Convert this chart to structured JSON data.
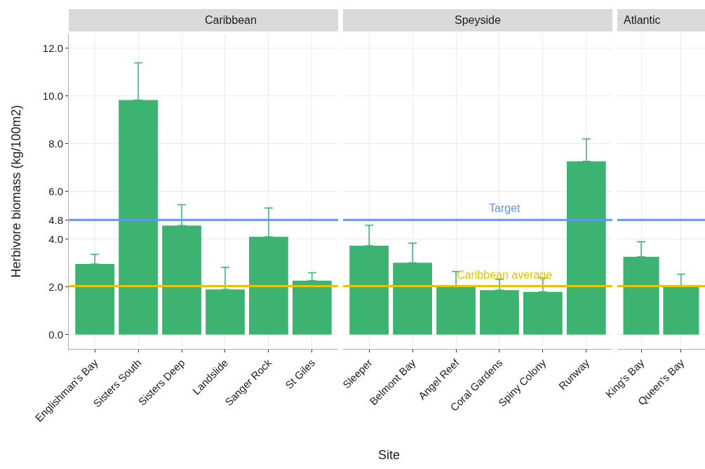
{
  "chart_data": [
    {
      "type": "bar",
      "title": "Caribbean",
      "ylabel": "Herbivore biomass (kg/100m2)",
      "categories": [
        "Englishman's Bay",
        "Sisters South",
        "Sisters Deep",
        "Landslide",
        "Sanger Rock",
        "St Giles"
      ],
      "color": "#3cb371",
      "values": [
        2.96,
        9.82,
        4.57,
        1.89,
        4.1,
        2.26
      ],
      "errors": [
        [
          2.96,
          3.36
        ],
        [
          9.82,
          11.38
        ],
        [
          4.57,
          5.44
        ],
        [
          1.89,
          2.82
        ],
        [
          4.1,
          5.3
        ],
        [
          2.26,
          2.59
        ]
      ],
      "ylim": [
        -0.6,
        12.6
      ],
      "yticks": [
        {
          "value": 0,
          "label": "0.0"
        },
        {
          "value": 2,
          "label": "2.0"
        },
        {
          "value": 4,
          "label": "4.0"
        },
        {
          "value": 4.8,
          "label": "4.8"
        },
        {
          "value": 6,
          "label": "6.0"
        },
        {
          "value": 8,
          "label": "8.0"
        },
        {
          "value": 10,
          "label": "10.0"
        },
        {
          "value": 12,
          "label": "12.0"
        }
      ],
      "grid": true,
      "ref_lines": [
        {
          "axis": "y",
          "value": 4.8,
          "color": "#6495ed"
        },
        {
          "axis": "y",
          "value": 2.03,
          "color": "#e6c300"
        }
      ]
    },
    {
      "type": "bar",
      "title": "Speyside",
      "xlabel": "Site",
      "categories": [
        "Sleeper",
        "Belmont Bay",
        "Angel Reef",
        "Coral Gardens",
        "Spiny Colony",
        "Runway"
      ],
      "color": "#3cb371",
      "values": [
        3.72,
        3.01,
        2.05,
        1.86,
        1.79,
        7.26
      ],
      "errors": [
        [
          3.72,
          4.58
        ],
        [
          3.01,
          3.83
        ],
        [
          2.05,
          2.64
        ],
        [
          1.86,
          2.32
        ],
        [
          1.79,
          2.38
        ],
        [
          7.26,
          8.2
        ]
      ],
      "ylim": [
        -0.6,
        12.6
      ],
      "yticks": [
        0,
        2,
        4,
        4.8,
        6,
        8,
        10,
        12
      ],
      "tick_labels": "x",
      "grid": true,
      "ref_lines": [
        {
          "axis": "y",
          "value": 4.8,
          "color": "#6495ed",
          "label": "Target"
        },
        {
          "axis": "y",
          "value": 2.03,
          "color": "#e6c300",
          "label": "Caribbean average"
        }
      ]
    },
    {
      "type": "bar",
      "title": "Atlantic",
      "categories": [
        "King's Bay",
        "Queen's Bay"
      ],
      "color": "#3cb371",
      "values": [
        3.26,
        2.05
      ],
      "errors": [
        [
          3.26,
          3.89
        ],
        [
          2.05,
          2.53
        ]
      ],
      "ylim": [
        -0.6,
        12.6
      ],
      "yticks": [
        0,
        2,
        4,
        4.8,
        6,
        8,
        10,
        12
      ],
      "tick_labels": "x",
      "grid": true,
      "ref_lines": [
        {
          "axis": "y",
          "value": 4.8,
          "color": "#6495ed"
        },
        {
          "axis": "y",
          "value": 2.03,
          "color": "#e6c300"
        }
      ]
    }
  ]
}
